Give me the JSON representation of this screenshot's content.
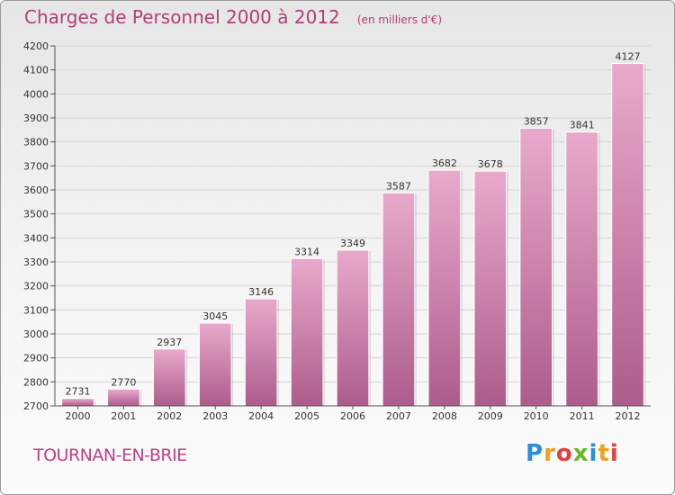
{
  "header": {
    "title": "Charges de Personnel 2000 à 2012",
    "subtitle": "(en milliers d'€)"
  },
  "commune": "TOURNAN-EN-BRIE",
  "logo": {
    "text": "Proxiti",
    "letters": [
      "P",
      "r",
      "o",
      "x",
      "i",
      "t",
      "i"
    ]
  },
  "colors": {
    "bar_top": "#e9a9cc",
    "bar_bottom": "#ad5c8b",
    "title": "#b03e7a"
  },
  "chart_data": {
    "type": "bar",
    "title": "Charges de Personnel 2000 à 2012",
    "subtitle": "(en milliers d'€)",
    "categories": [
      "2000",
      "2001",
      "2002",
      "2003",
      "2004",
      "2005",
      "2006",
      "2007",
      "2008",
      "2009",
      "2010",
      "2011",
      "2012"
    ],
    "values": [
      2731,
      2770,
      2937,
      3045,
      3146,
      3314,
      3349,
      3587,
      3682,
      3678,
      3857,
      3841,
      4127
    ],
    "ylim": [
      2700,
      4200
    ],
    "yticks": [
      2700,
      2800,
      2900,
      3000,
      3100,
      3200,
      3300,
      3400,
      3500,
      3600,
      3700,
      3800,
      3900,
      4000,
      4100,
      4200
    ],
    "grid": true,
    "data_labels": true
  }
}
